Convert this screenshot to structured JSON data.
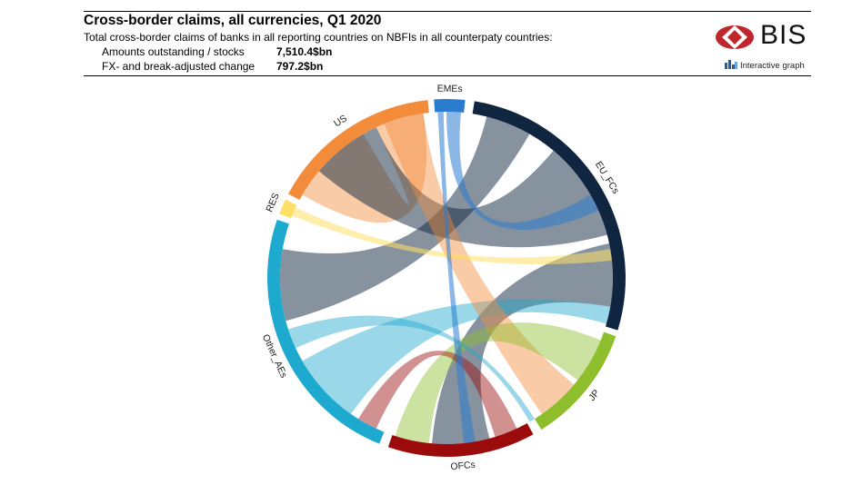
{
  "header": {
    "title": "Cross-border claims, all currencies, Q1 2020",
    "subtitle": "Total cross-border claims of banks in all reporting countries on NBFIs in all counterpaty countries:",
    "metrics": [
      {
        "label": "Amounts outstanding / stocks",
        "value": "7,510.4$bn"
      },
      {
        "label": "FX- and break-adjusted change",
        "value": "797.2$bn"
      }
    ]
  },
  "branding": {
    "logo_text": "BIS",
    "interactive_label": "Interactive graph",
    "logo_color": "#c0272d"
  },
  "chart_data": {
    "type": "chord",
    "groups": [
      {
        "name": "EMEs",
        "color": "#2a7ccf"
      },
      {
        "name": "EU_FCs",
        "color": "#0f2540"
      },
      {
        "name": "JP",
        "color": "#8fbe2d"
      },
      {
        "name": "OFCs",
        "color": "#9b0b0b"
      },
      {
        "name": "Other_AEs",
        "color": "#1ea9cf"
      },
      {
        "name": "RES",
        "color": "#ffe066"
      },
      {
        "name": "US",
        "color": "#f28c3b"
      }
    ]
  }
}
